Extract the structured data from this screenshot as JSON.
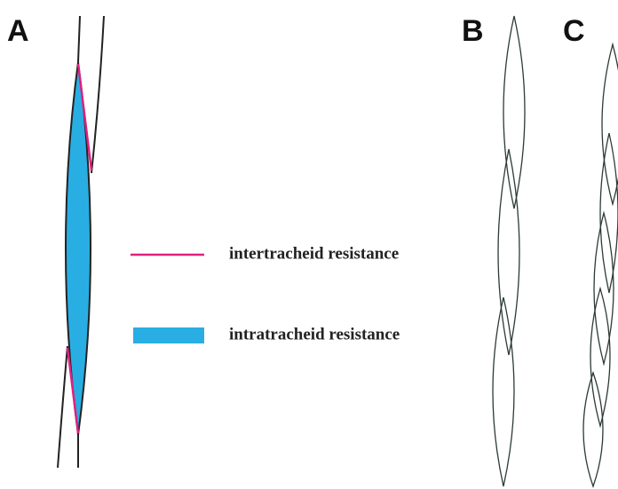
{
  "panels": [
    {
      "label": "A"
    },
    {
      "label": "B"
    },
    {
      "label": "C"
    }
  ],
  "legend": [
    {
      "label": "intertracheid resistance"
    },
    {
      "label": "intratracheid resistance"
    }
  ]
}
